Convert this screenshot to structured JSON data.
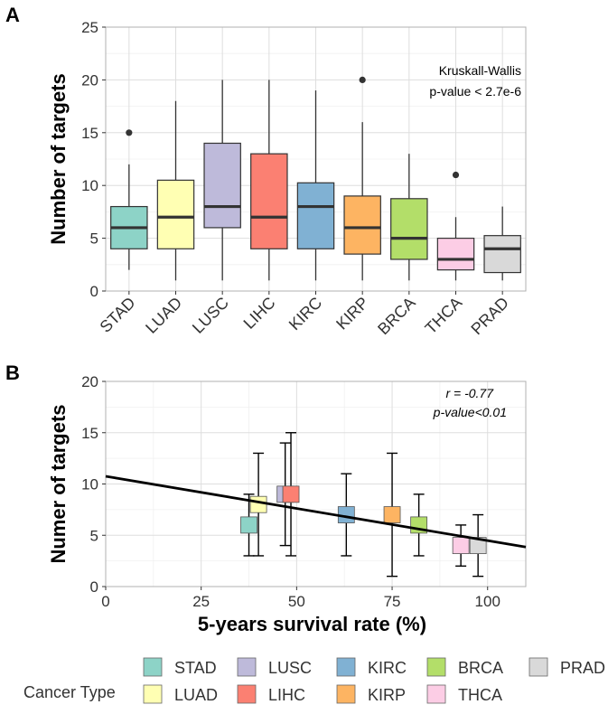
{
  "panel_a_letter": "A",
  "panel_b_letter": "B",
  "chart_data": [
    {
      "type": "boxplot",
      "panel": "A",
      "ylabel": "Number of targets",
      "xlabel": "",
      "ylim": [
        0,
        25
      ],
      "yticks": [
        0,
        5,
        10,
        15,
        20,
        25
      ],
      "grid": true,
      "annotation": [
        "Kruskall-Wallis",
        "p-value < 2.7e-6"
      ],
      "boxes": [
        {
          "name": "STAD",
          "color": "#8dd3c7",
          "min": 2,
          "q1": 4,
          "median": 6,
          "q3": 8,
          "max": 12,
          "outliers": [
            15
          ]
        },
        {
          "name": "LUAD",
          "color": "#ffffb3",
          "min": 1,
          "q1": 4,
          "median": 7,
          "q3": 10.5,
          "max": 18,
          "outliers": []
        },
        {
          "name": "LUSC",
          "color": "#bebada",
          "min": 1,
          "q1": 6,
          "median": 8,
          "q3": 14,
          "max": 20,
          "outliers": []
        },
        {
          "name": "LIHC",
          "color": "#fb8072",
          "min": 1,
          "q1": 4,
          "median": 7,
          "q3": 13,
          "max": 20,
          "outliers": []
        },
        {
          "name": "KIRC",
          "color": "#80b1d3",
          "min": 1,
          "q1": 4,
          "median": 8,
          "q3": 10.25,
          "max": 19,
          "outliers": []
        },
        {
          "name": "KIRP",
          "color": "#fdb462",
          "min": 1,
          "q1": 3.5,
          "median": 6,
          "q3": 9,
          "max": 16,
          "outliers": [
            20
          ]
        },
        {
          "name": "BRCA",
          "color": "#b3de69",
          "min": 1,
          "q1": 3,
          "median": 5,
          "q3": 8.75,
          "max": 13,
          "outliers": []
        },
        {
          "name": "THCA",
          "color": "#fccde5",
          "min": 1,
          "q1": 2,
          "median": 3,
          "q3": 5,
          "max": 7,
          "outliers": [
            11
          ]
        },
        {
          "name": "PRAD",
          "color": "#d9d9d9",
          "min": 1,
          "q1": 1.75,
          "median": 4,
          "q3": 5.25,
          "max": 8,
          "outliers": []
        }
      ]
    },
    {
      "type": "scatter",
      "panel": "B",
      "xlabel": "5-years survival rate (%)",
      "ylabel": "Numer of targets",
      "xlim": [
        0,
        110
      ],
      "ylim": [
        0,
        20
      ],
      "xticks": [
        0,
        25,
        50,
        75,
        100
      ],
      "yticks": [
        0,
        5,
        10,
        15,
        20
      ],
      "grid": true,
      "annotation": [
        "r = -0.77",
        "p-value<0.01"
      ],
      "regression": {
        "x0": 0,
        "y0": 10.75,
        "x1": 110,
        "y1": 3.85
      },
      "points": [
        {
          "name": "STAD",
          "color": "#8dd3c7",
          "x": 37.5,
          "y": 6,
          "err_low": 3,
          "err_high": 9
        },
        {
          "name": "LUAD",
          "color": "#ffffb3",
          "x": 40,
          "y": 8,
          "err_low": 3,
          "err_high": 13
        },
        {
          "name": "LUSC",
          "color": "#bebada",
          "x": 47,
          "y": 9,
          "err_low": 4,
          "err_high": 14
        },
        {
          "name": "LIHC",
          "color": "#fb8072",
          "x": 48.5,
          "y": 9,
          "err_low": 3,
          "err_high": 15
        },
        {
          "name": "KIRC",
          "color": "#80b1d3",
          "x": 63,
          "y": 7,
          "err_low": 3,
          "err_high": 11
        },
        {
          "name": "KIRP",
          "color": "#fdb462",
          "x": 75,
          "y": 7,
          "err_low": 1,
          "err_high": 13
        },
        {
          "name": "BRCA",
          "color": "#b3de69",
          "x": 82,
          "y": 6,
          "err_low": 3,
          "err_high": 9
        },
        {
          "name": "THCA",
          "color": "#fccde5",
          "x": 93,
          "y": 4,
          "err_low": 2,
          "err_high": 6
        },
        {
          "name": "PRAD",
          "color": "#d9d9d9",
          "x": 97.5,
          "y": 4,
          "err_low": 1,
          "err_high": 7
        }
      ]
    }
  ],
  "legend": {
    "title": "Cancer Type",
    "items": [
      {
        "name": "STAD",
        "color": "#8dd3c7"
      },
      {
        "name": "LUAD",
        "color": "#ffffb3"
      },
      {
        "name": "LUSC",
        "color": "#bebada"
      },
      {
        "name": "LIHC",
        "color": "#fb8072"
      },
      {
        "name": "KIRC",
        "color": "#80b1d3"
      },
      {
        "name": "KIRP",
        "color": "#fdb462"
      },
      {
        "name": "BRCA",
        "color": "#b3de69"
      },
      {
        "name": "THCA",
        "color": "#fccde5"
      },
      {
        "name": "PRAD",
        "color": "#d9d9d9"
      }
    ]
  }
}
